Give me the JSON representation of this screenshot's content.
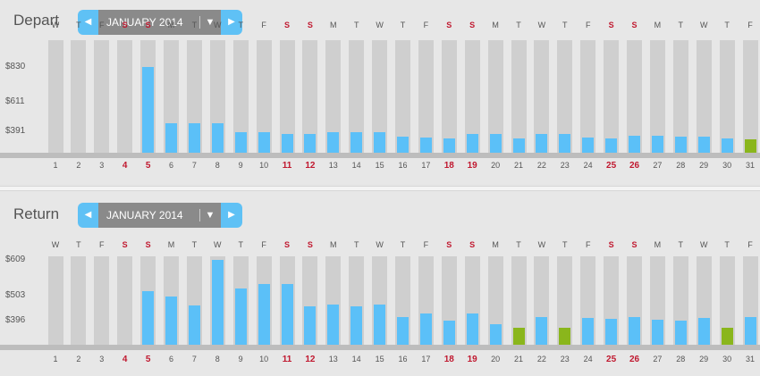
{
  "colors": {
    "bar": "#5bc0f8",
    "lowest": "#8ab61c",
    "weekend": "#c0182f",
    "column": "#cfcfcf"
  },
  "panels": [
    {
      "key": "depart",
      "title": "Depart",
      "month_label": "JANUARY 2014",
      "icons": {
        "prev": "left-arrow-icon",
        "next": "right-arrow-icon",
        "dropdown": "dropdown-arrow-icon"
      },
      "y_ticks": [
        "$830",
        "$611",
        "$391"
      ],
      "y_tick_values": [
        830,
        611,
        391
      ],
      "price_unit": "$",
      "days": [
        {
          "date": "1",
          "dow": "W",
          "price": null
        },
        {
          "date": "2",
          "dow": "T",
          "price": null
        },
        {
          "date": "3",
          "dow": "F",
          "price": null
        },
        {
          "date": "4",
          "dow": "S",
          "price": null
        },
        {
          "date": "5",
          "dow": "S",
          "price": 830
        },
        {
          "date": "6",
          "dow": "M",
          "price": 445
        },
        {
          "date": "7",
          "dow": "T",
          "price": 445
        },
        {
          "date": "8",
          "dow": "W",
          "price": 445
        },
        {
          "date": "9",
          "dow": "T",
          "price": 385
        },
        {
          "date": "10",
          "dow": "F",
          "price": 385
        },
        {
          "date": "11",
          "dow": "S",
          "price": 375
        },
        {
          "date": "12",
          "dow": "S",
          "price": 375
        },
        {
          "date": "13",
          "dow": "M",
          "price": 385
        },
        {
          "date": "14",
          "dow": "T",
          "price": 385
        },
        {
          "date": "15",
          "dow": "W",
          "price": 385
        },
        {
          "date": "16",
          "dow": "T",
          "price": 355
        },
        {
          "date": "17",
          "dow": "F",
          "price": 350
        },
        {
          "date": "18",
          "dow": "S",
          "price": 340
        },
        {
          "date": "19",
          "dow": "S",
          "price": 375
        },
        {
          "date": "20",
          "dow": "M",
          "price": 370
        },
        {
          "date": "21",
          "dow": "T",
          "price": 345
        },
        {
          "date": "22",
          "dow": "W",
          "price": 375
        },
        {
          "date": "23",
          "dow": "T",
          "price": 370
        },
        {
          "date": "24",
          "dow": "F",
          "price": 350
        },
        {
          "date": "25",
          "dow": "S",
          "price": 340
        },
        {
          "date": "26",
          "dow": "S",
          "price": 362
        },
        {
          "date": "27",
          "dow": "M",
          "price": 362
        },
        {
          "date": "28",
          "dow": "T",
          "price": 355
        },
        {
          "date": "29",
          "dow": "W",
          "price": 355
        },
        {
          "date": "30",
          "dow": "T",
          "price": 345
        },
        {
          "date": "31",
          "dow": "F",
          "price": 335
        }
      ],
      "lowest_dates": [
        "31"
      ]
    },
    {
      "key": "return",
      "title": "Return",
      "month_label": "JANUARY 2014",
      "icons": {
        "prev": "left-arrow-icon",
        "next": "right-arrow-icon",
        "dropdown": "dropdown-arrow-icon"
      },
      "y_ticks": [
        "$609",
        "$503",
        "$396"
      ],
      "y_tick_values": [
        609,
        503,
        396
      ],
      "price_unit": "$",
      "days": [
        {
          "date": "1",
          "dow": "W",
          "price": null
        },
        {
          "date": "2",
          "dow": "T",
          "price": null
        },
        {
          "date": "3",
          "dow": "F",
          "price": null
        },
        {
          "date": "4",
          "dow": "S",
          "price": null
        },
        {
          "date": "5",
          "dow": "S",
          "price": 500
        },
        {
          "date": "6",
          "dow": "M",
          "price": 480
        },
        {
          "date": "7",
          "dow": "T",
          "price": 450
        },
        {
          "date": "8",
          "dow": "W",
          "price": 609
        },
        {
          "date": "9",
          "dow": "T",
          "price": 510
        },
        {
          "date": "10",
          "dow": "F",
          "price": 525
        },
        {
          "date": "11",
          "dow": "S",
          "price": 525
        },
        {
          "date": "12",
          "dow": "S",
          "price": 445
        },
        {
          "date": "13",
          "dow": "M",
          "price": 453
        },
        {
          "date": "14",
          "dow": "T",
          "price": 445
        },
        {
          "date": "15",
          "dow": "W",
          "price": 453
        },
        {
          "date": "16",
          "dow": "T",
          "price": 407
        },
        {
          "date": "17",
          "dow": "F",
          "price": 420
        },
        {
          "date": "18",
          "dow": "S",
          "price": 395
        },
        {
          "date": "19",
          "dow": "S",
          "price": 420
        },
        {
          "date": "20",
          "dow": "M",
          "price": 385
        },
        {
          "date": "21",
          "dow": "T",
          "price": 370
        },
        {
          "date": "22",
          "dow": "W",
          "price": 410
        },
        {
          "date": "23",
          "dow": "T",
          "price": 370
        },
        {
          "date": "24",
          "dow": "F",
          "price": 405
        },
        {
          "date": "25",
          "dow": "S",
          "price": 402
        },
        {
          "date": "26",
          "dow": "S",
          "price": 410
        },
        {
          "date": "27",
          "dow": "M",
          "price": 400
        },
        {
          "date": "28",
          "dow": "T",
          "price": 396
        },
        {
          "date": "29",
          "dow": "W",
          "price": 405
        },
        {
          "date": "30",
          "dow": "T",
          "price": 370
        },
        {
          "date": "31",
          "dow": "F",
          "price": 410
        }
      ],
      "lowest_dates": [
        "21",
        "23",
        "30"
      ]
    }
  ]
}
